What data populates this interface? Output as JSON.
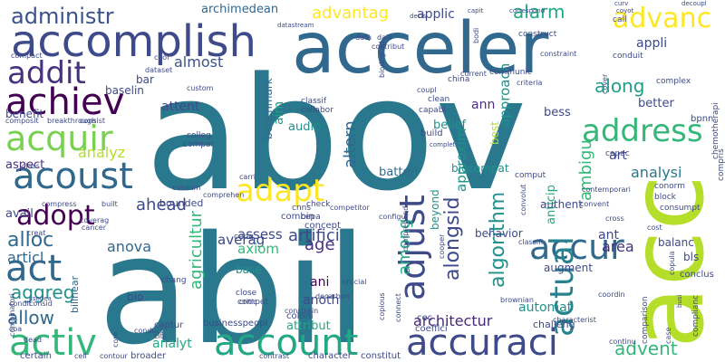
{
  "colors": {
    "background": "#ffffff",
    "palette": [
      "#440154",
      "#46327e",
      "#365c8d",
      "#277f8e",
      "#1fa187",
      "#4ac16d",
      "#a0da39",
      "#fde725"
    ]
  },
  "words": [
    {
      "text": "abov",
      "color": "#2a788e"
    },
    {
      "text": "abil",
      "color": "#2a788e"
    },
    {
      "text": "acc",
      "color": "#b5de2b"
    },
    {
      "text": "acceler",
      "color": "#31688e"
    },
    {
      "text": "accomplish",
      "color": "#3e4a89"
    },
    {
      "text": "accuraci",
      "color": "#3e4a89"
    },
    {
      "text": "account",
      "color": "#22a884"
    },
    {
      "text": "activ",
      "color": "#35b779"
    },
    {
      "text": "acquir",
      "color": "#7ad151"
    },
    {
      "text": "achiev",
      "color": "#440154"
    },
    {
      "text": "addit",
      "color": "#46327e"
    },
    {
      "text": "acoust",
      "color": "#31688e"
    },
    {
      "text": "act",
      "color": "#31688e"
    },
    {
      "text": "adopt",
      "color": "#440154"
    },
    {
      "text": "advanc",
      "color": "#fde725"
    },
    {
      "text": "address",
      "color": "#35b779"
    },
    {
      "text": "accur",
      "color": "#31688e"
    },
    {
      "text": "adapt",
      "color": "#fde725"
    },
    {
      "text": "adjust",
      "color": "#3e4a89"
    },
    {
      "text": "actual",
      "color": "#26828e"
    },
    {
      "text": "administr",
      "color": "#3b528b"
    },
    {
      "text": "aggreg",
      "color": "#21918c"
    },
    {
      "text": "alloc",
      "color": "#31688e"
    },
    {
      "text": "algorithm",
      "color": "#21918c"
    },
    {
      "text": "alongsid",
      "color": "#3e4a89"
    },
    {
      "text": "advent",
      "color": "#35b779"
    },
    {
      "text": "allow",
      "color": "#31688e"
    },
    {
      "text": "articl",
      "color": "#31688e"
    },
    {
      "text": "along",
      "color": "#1f9e89"
    },
    {
      "text": "advantag",
      "color": "#fde725"
    },
    {
      "text": "alarm",
      "color": "#22a884"
    },
    {
      "text": "ahead",
      "color": "#3e4a89"
    },
    {
      "text": "artifici",
      "color": "#3e4a89"
    },
    {
      "text": "age",
      "color": "#46327e"
    },
    {
      "text": "among",
      "color": "#22a884"
    },
    {
      "text": "anova",
      "color": "#31688e"
    },
    {
      "text": "almost",
      "color": "#3b528b"
    },
    {
      "text": "agricultur",
      "color": "#35b779"
    },
    {
      "text": "altern",
      "color": "#31688e"
    },
    {
      "text": "analyz",
      "color": "#b5de2b"
    },
    {
      "text": "analysi",
      "color": "#2a788e"
    },
    {
      "text": "ambigu",
      "color": "#35b779"
    },
    {
      "text": "approxim",
      "color": "#21918c"
    },
    {
      "text": "approach",
      "color": "#21918c"
    },
    {
      "text": "architectur",
      "color": "#482878"
    },
    {
      "text": "area",
      "color": "#46327e"
    },
    {
      "text": "analyt",
      "color": "#22a884"
    },
    {
      "text": "assess",
      "color": "#3e4a89"
    },
    {
      "text": "averag",
      "color": "#3e4a89"
    },
    {
      "text": "axiom",
      "color": "#35b779"
    },
    {
      "text": "aim",
      "color": "#1f9e89"
    },
    {
      "text": "attent",
      "color": "#3e4a89"
    },
    {
      "text": "automat",
      "color": "#21918c"
    },
    {
      "text": "archimedean",
      "color": "#31688e"
    },
    {
      "text": "applic",
      "color": "#3e4a89"
    },
    {
      "text": "appli",
      "color": "#3e4a89"
    },
    {
      "text": "art",
      "color": "#3e4a89"
    },
    {
      "text": "anoth",
      "color": "#3e4a89"
    },
    {
      "text": "ani",
      "color": "#440154"
    },
    {
      "text": "ant",
      "color": "#3e4a89"
    },
    {
      "text": "ann",
      "color": "#46327e"
    },
    {
      "text": "aspect",
      "color": "#46327e"
    },
    {
      "text": "avail",
      "color": "#3e4a89"
    },
    {
      "text": "attribut",
      "color": "#22a884"
    },
    {
      "text": "anticip",
      "color": "#22a884"
    },
    {
      "text": "audio",
      "color": "#21918c"
    },
    {
      "text": "belief",
      "color": "#21918c"
    },
    {
      "text": "better",
      "color": "#3e4a89"
    },
    {
      "text": "bess",
      "color": "#3e4a89"
    },
    {
      "text": "batteri",
      "color": "#31688e"
    },
    {
      "text": "benefit",
      "color": "#3e4a89"
    },
    {
      "text": "baselin",
      "color": "#3e4a89"
    },
    {
      "text": "bar",
      "color": "#3e4a89"
    },
    {
      "text": "benchmark",
      "color": "#31688e"
    },
    {
      "text": "beyond",
      "color": "#21918c"
    },
    {
      "text": "balanc",
      "color": "#3e4a89"
    },
    {
      "text": "augment",
      "color": "#3e4a89"
    },
    {
      "text": "authent",
      "color": "#3e4a89"
    },
    {
      "text": "behavior",
      "color": "#3e4a89"
    },
    {
      "text": "biocompat",
      "color": "#21918c"
    },
    {
      "text": "base",
      "color": "#21918c"
    },
    {
      "text": "bio",
      "color": "#3e4a89"
    },
    {
      "text": "best",
      "color": "#b5de2b"
    },
    {
      "text": "bounded",
      "color": "#3e4a89"
    },
    {
      "text": "bilinear",
      "color": "#31688e"
    },
    {
      "text": "bls",
      "color": "#3e4a89"
    },
    {
      "text": "challeng",
      "color": "#3e4a89"
    },
    {
      "text": "businesspeopl",
      "color": "#3e4a89"
    },
    {
      "text": "coloni",
      "color": "#3e4a89"
    },
    {
      "text": "build",
      "color": "#3e4a89"
    },
    {
      "text": "cec",
      "color": "#3e4a89"
    },
    {
      "text": "coeffici",
      "color": "#3e4a89"
    },
    {
      "text": "concept",
      "color": "#3e4a89"
    },
    {
      "text": "combin",
      "color": "#3e4a89"
    },
    {
      "text": "captur",
      "color": "#3e4a89"
    },
    {
      "text": "certain",
      "color": "#3e4a89"
    },
    {
      "text": "broader",
      "color": "#3e4a89"
    },
    {
      "text": "constitut",
      "color": "#3e4a89"
    },
    {
      "text": "character",
      "color": "#3e4a89"
    },
    {
      "text": "complianc",
      "color": "#3e4a89"
    },
    {
      "text": "comparison",
      "color": "#3e4a89"
    },
    {
      "text": "conclus",
      "color": "#3e4a89"
    },
    {
      "text": "cnns",
      "color": "#3e4a89"
    },
    {
      "text": "cepa",
      "color": "#3e4a89"
    },
    {
      "text": "clean",
      "color": "#3e4a89"
    },
    {
      "text": "capabl",
      "color": "#3e4a89"
    },
    {
      "text": "classif",
      "color": "#3e4a89"
    },
    {
      "text": "collabor",
      "color": "#3e4a89"
    },
    {
      "text": "colleg",
      "color": "#3e4a89"
    },
    {
      "text": "compar",
      "color": "#3e4a89"
    },
    {
      "text": "check",
      "color": "#3e4a89"
    },
    {
      "text": "china",
      "color": "#3e4a89"
    },
    {
      "text": "communic",
      "color": "#3e4a89"
    },
    {
      "text": "construct",
      "color": "#3e4a89"
    },
    {
      "text": "comput",
      "color": "#3e4a89"
    },
    {
      "text": "capac",
      "color": "#3e4a89"
    },
    {
      "text": "call",
      "color": "#3e4a89"
    },
    {
      "text": "conduit",
      "color": "#3e4a89"
    },
    {
      "text": "complex",
      "color": "#3e4a89"
    },
    {
      "text": "chemotherapi",
      "color": "#3e4a89"
    },
    {
      "text": "compris",
      "color": "#3e4a89"
    },
    {
      "text": "bpnn",
      "color": "#3e4a89"
    },
    {
      "text": "conorm",
      "color": "#3e4a89"
    },
    {
      "text": "block",
      "color": "#3e4a89"
    },
    {
      "text": "consumpt",
      "color": "#3e4a89"
    },
    {
      "text": "cepg",
      "color": "#3e4a89"
    },
    {
      "text": "chang",
      "color": "#3e4a89"
    },
    {
      "text": "close",
      "color": "#3e4a89"
    },
    {
      "text": "compet",
      "color": "#3e4a89"
    },
    {
      "text": "custom",
      "color": "#3e4a89"
    },
    {
      "text": "breakthrough",
      "color": "#3e4a89"
    },
    {
      "text": "composit",
      "color": "#3e4a89"
    },
    {
      "text": "consist",
      "color": "#3e4a89"
    },
    {
      "text": "compact",
      "color": "#3e4a89"
    },
    {
      "text": "dataset",
      "color": "#3e4a89"
    },
    {
      "text": "cool",
      "color": "#3e4a89"
    },
    {
      "text": "biodegrad",
      "color": "#3e4a89"
    },
    {
      "text": "daili",
      "color": "#3e4a89"
    },
    {
      "text": "data",
      "color": "#3e4a89"
    },
    {
      "text": "contribut",
      "color": "#3e4a89"
    },
    {
      "text": "coupl",
      "color": "#3e4a89"
    },
    {
      "text": "current",
      "color": "#3e4a89"
    },
    {
      "text": "bodi",
      "color": "#3e4a89"
    },
    {
      "text": "citi",
      "color": "#3e4a89"
    },
    {
      "text": "conduct",
      "color": "#3e4a89"
    },
    {
      "text": "copula",
      "color": "#3e4a89"
    },
    {
      "text": "continu",
      "color": "#3e4a89"
    },
    {
      "text": "contour",
      "color": "#3e4a89"
    },
    {
      "text": "cell",
      "color": "#3e4a89"
    },
    {
      "text": "core",
      "color": "#3e4a89"
    },
    {
      "text": "dead",
      "color": "#3e4a89"
    },
    {
      "text": "condit",
      "color": "#3e4a89"
    },
    {
      "text": "consid",
      "color": "#3e4a89"
    },
    {
      "text": "csodea",
      "color": "#3e4a89"
    },
    {
      "text": "coa",
      "color": "#3e4a89"
    },
    {
      "text": "creat",
      "color": "#3e4a89"
    },
    {
      "text": "built",
      "color": "#3e4a89"
    },
    {
      "text": "cancer",
      "color": "#3e4a89"
    },
    {
      "text": "coverag",
      "color": "#3e4a89"
    },
    {
      "text": "compress",
      "color": "#3e4a89"
    },
    {
      "text": "class",
      "color": "#3e4a89"
    },
    {
      "text": "carri",
      "color": "#3e4a89"
    },
    {
      "text": "consum",
      "color": "#3e4a89"
    },
    {
      "text": "comprehen",
      "color": "#3e4a89"
    },
    {
      "text": "critic",
      "color": "#3e4a89"
    },
    {
      "text": "configur",
      "color": "#3e4a89"
    },
    {
      "text": "cooper",
      "color": "#3e4a89"
    },
    {
      "text": "competitor",
      "color": "#3e4a89"
    },
    {
      "text": "convolut",
      "color": "#3e4a89"
    },
    {
      "text": "convent",
      "color": "#3e4a89"
    },
    {
      "text": "cross",
      "color": "#3e4a89"
    },
    {
      "text": "classifi",
      "color": "#3e4a89"
    },
    {
      "text": "coordin",
      "color": "#3e4a89"
    },
    {
      "text": "cost",
      "color": "#3e4a89"
    },
    {
      "text": "crucial",
      "color": "#3e4a89"
    },
    {
      "text": "decarbon",
      "color": "#3e4a89"
    },
    {
      "text": "constrain",
      "color": "#3e4a89"
    },
    {
      "text": "copious",
      "color": "#3e4a89"
    },
    {
      "text": "connect",
      "color": "#3e4a89"
    },
    {
      "text": "comprehend",
      "color": "#3e4a89"
    },
    {
      "text": "case",
      "color": "#3e4a89"
    },
    {
      "text": "brownian",
      "color": "#3e4a89"
    },
    {
      "text": "characterist",
      "color": "#3e4a89"
    },
    {
      "text": "contrast",
      "color": "#3e4a89"
    },
    {
      "text": "combinatori",
      "color": "#3e4a89"
    },
    {
      "text": "contemporari",
      "color": "#3e4a89"
    },
    {
      "text": "criteria",
      "color": "#3e4a89"
    },
    {
      "text": "constraint",
      "color": "#3e4a89"
    },
    {
      "text": "cover",
      "color": "#3e4a89"
    },
    {
      "text": "curv",
      "color": "#3e4a89"
    },
    {
      "text": "decoupl",
      "color": "#3e4a89"
    },
    {
      "text": "coyot",
      "color": "#3e4a89"
    },
    {
      "text": "capit",
      "color": "#3e4a89"
    },
    {
      "text": "correspond",
      "color": "#3e4a89"
    },
    {
      "text": "decis",
      "color": "#3e4a89"
    },
    {
      "text": "datastream",
      "color": "#3e4a89"
    },
    {
      "text": "complet",
      "color": "#3e4a89"
    },
    {
      "text": "busi",
      "color": "#3e4a89"
    }
  ]
}
